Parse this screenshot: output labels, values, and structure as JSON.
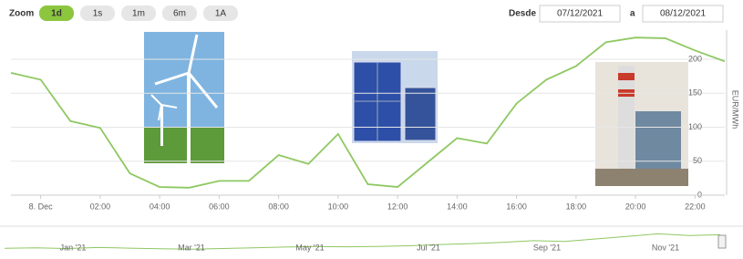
{
  "ui": {
    "zoom_label": "Zoom",
    "zoom_buttons": [
      "1d",
      "1s",
      "1m",
      "6m",
      "1A"
    ],
    "selected_zoom": "1d",
    "from_label": "Desde",
    "from_date": "07/12/2021",
    "to_label": "a",
    "to_date": "08/12/2021"
  },
  "chart_data": {
    "type": "line",
    "y_label": "EUR/MWh",
    "x": [
      -1,
      0,
      1,
      2,
      3,
      4,
      5,
      6,
      7,
      8,
      9,
      10,
      11,
      12,
      13,
      14,
      15,
      16,
      17,
      18,
      19,
      20,
      21,
      22,
      23
    ],
    "series": [
      {
        "color": "#8fc862",
        "values": [
          180,
          170,
          109,
          99,
          32,
          12,
          11,
          21,
          21,
          59,
          46,
          90,
          16,
          12,
          48,
          84,
          76,
          135,
          170,
          190,
          225,
          232,
          231,
          213,
          197
        ]
      }
    ],
    "xlim": [
      -1,
      23
    ],
    "ylim": [
      0,
      243
    ],
    "xticks": [
      {
        "value": 0,
        "label": "8. Dec"
      },
      {
        "value": 2,
        "label": "02:00"
      },
      {
        "value": 4,
        "label": "04:00"
      },
      {
        "value": 6,
        "label": "06:00"
      },
      {
        "value": 8,
        "label": "08:00"
      },
      {
        "value": 10,
        "label": "10:00"
      },
      {
        "value": 12,
        "label": "12:00"
      },
      {
        "value": 14,
        "label": "14:00"
      },
      {
        "value": 16,
        "label": "16:00"
      },
      {
        "value": 18,
        "label": "18:00"
      },
      {
        "value": 20,
        "label": "20:00"
      },
      {
        "value": 22,
        "label": "22:00"
      }
    ],
    "yticks": [
      0,
      50,
      100,
      150,
      200
    ],
    "grid": true,
    "navigator": {
      "labels": [
        "Jan '21",
        "Mar '21",
        "May '21",
        "Jul '21",
        "Sep '21",
        "Nov '21"
      ],
      "values": [
        40,
        45,
        38,
        50,
        42,
        35,
        30,
        38,
        45,
        55,
        60,
        58,
        62,
        70,
        85,
        95,
        110,
        130,
        120,
        150,
        180,
        210,
        190,
        200
      ],
      "ylim": [
        0,
        300
      ]
    }
  }
}
